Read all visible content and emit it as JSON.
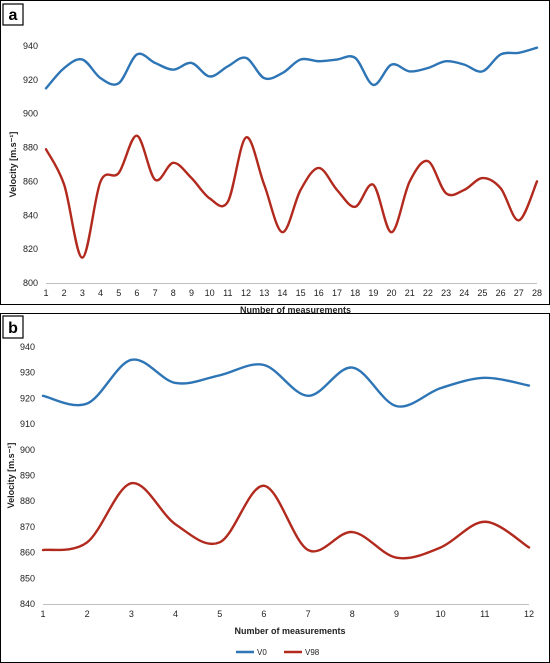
{
  "chart_data": [
    {
      "type": "line",
      "panel_label": "a",
      "title": "",
      "xlabel": "Number of measurements",
      "ylabel": "Velocity [m.s⁻¹]",
      "ylim": [
        800,
        940
      ],
      "yticks": [
        800,
        820,
        840,
        860,
        880,
        900,
        920,
        940
      ],
      "x": [
        1,
        2,
        3,
        4,
        5,
        6,
        7,
        8,
        9,
        10,
        11,
        12,
        13,
        14,
        15,
        16,
        17,
        18,
        19,
        20,
        21,
        22,
        23,
        24,
        25,
        26,
        27,
        28
      ],
      "legend": "bottom",
      "series": [
        {
          "name": "V0",
          "color": "#2e75b6",
          "values": [
            915,
            927,
            932,
            921,
            918,
            935,
            930,
            926,
            930,
            922,
            928,
            933,
            921,
            924,
            932,
            931,
            932,
            933,
            917,
            929,
            925,
            927,
            931,
            929,
            925,
            935,
            936,
            939
          ]
        },
        {
          "name": "V98",
          "color": "#b22a1e",
          "values": [
            879,
            858,
            815,
            860,
            865,
            887,
            861,
            871,
            862,
            850,
            848,
            886,
            858,
            830,
            855,
            868,
            855,
            845,
            858,
            830,
            860,
            872,
            853,
            855,
            862,
            856,
            837,
            860
          ]
        }
      ]
    },
    {
      "type": "line",
      "panel_label": "b",
      "title": "",
      "xlabel": "Number of measurements",
      "ylabel": "Velocity [m.s⁻¹]",
      "ylim": [
        840,
        940
      ],
      "yticks": [
        840,
        850,
        860,
        870,
        880,
        890,
        900,
        910,
        920,
        930,
        940
      ],
      "x": [
        1,
        2,
        3,
        4,
        5,
        6,
        7,
        8,
        9,
        10,
        11,
        12
      ],
      "legend": "bottom",
      "series": [
        {
          "name": "V0",
          "color": "#2e75b6",
          "values": [
            921,
            918,
            935,
            926,
            929,
            933,
            921,
            932,
            917,
            924,
            928,
            925
          ]
        },
        {
          "name": "V98",
          "color": "#b22a1e",
          "values": [
            861,
            864,
            887,
            871,
            864,
            886,
            861,
            868,
            858,
            862,
            872,
            862
          ]
        }
      ]
    }
  ]
}
